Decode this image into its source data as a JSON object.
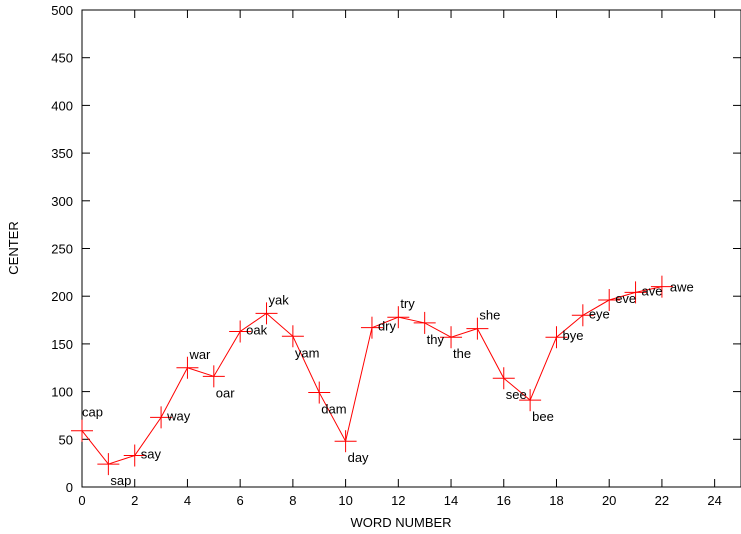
{
  "chart_data": {
    "type": "line",
    "xlabel": "WORD NUMBER",
    "ylabel": "CENTER",
    "xlim": [
      0,
      25
    ],
    "ylim": [
      0,
      500
    ],
    "xticks": [
      0,
      2,
      4,
      6,
      8,
      10,
      12,
      14,
      16,
      18,
      20,
      22,
      24
    ],
    "yticks": [
      0,
      50,
      100,
      150,
      200,
      250,
      300,
      350,
      400,
      450,
      500
    ],
    "xtick_labels": [
      "0",
      "2",
      "4",
      "6",
      "8",
      "10",
      "12",
      "14",
      "16",
      "18",
      "20",
      "22",
      "24"
    ],
    "ytick_labels": [
      "0",
      "50",
      "100",
      "150",
      "200",
      "250",
      "300",
      "350",
      "400",
      "450",
      "500"
    ],
    "grid": false,
    "marker": "plus",
    "line_color": "#ff0000",
    "series": [
      {
        "points": [
          {
            "x": 0,
            "y": 59,
            "label": "cap"
          },
          {
            "x": 1,
            "y": 24,
            "label": "sap"
          },
          {
            "x": 2,
            "y": 33,
            "label": "say"
          },
          {
            "x": 3,
            "y": 73,
            "label": "way"
          },
          {
            "x": 4,
            "y": 125,
            "label": "war"
          },
          {
            "x": 5,
            "y": 116,
            "label": "oar"
          },
          {
            "x": 6,
            "y": 163,
            "label": "oak"
          },
          {
            "x": 7,
            "y": 182,
            "label": "yak"
          },
          {
            "x": 8,
            "y": 158,
            "label": "yam"
          },
          {
            "x": 9,
            "y": 99,
            "label": "dam"
          },
          {
            "x": 10,
            "y": 48,
            "label": "day"
          },
          {
            "x": 11,
            "y": 167,
            "label": "dry"
          },
          {
            "x": 12,
            "y": 178,
            "label": "try"
          },
          {
            "x": 13,
            "y": 172,
            "label": "thy"
          },
          {
            "x": 14,
            "y": 157,
            "label": "the"
          },
          {
            "x": 15,
            "y": 166,
            "label": "she"
          },
          {
            "x": 16,
            "y": 114,
            "label": "see"
          },
          {
            "x": 17,
            "y": 91,
            "label": "bee"
          },
          {
            "x": 18,
            "y": 157,
            "label": "bye"
          },
          {
            "x": 19,
            "y": 180,
            "label": "eye"
          },
          {
            "x": 20,
            "y": 196,
            "label": "eve"
          },
          {
            "x": 21,
            "y": 204,
            "label": "ave"
          },
          {
            "x": 22,
            "y": 210,
            "label": "awe"
          }
        ]
      }
    ]
  }
}
